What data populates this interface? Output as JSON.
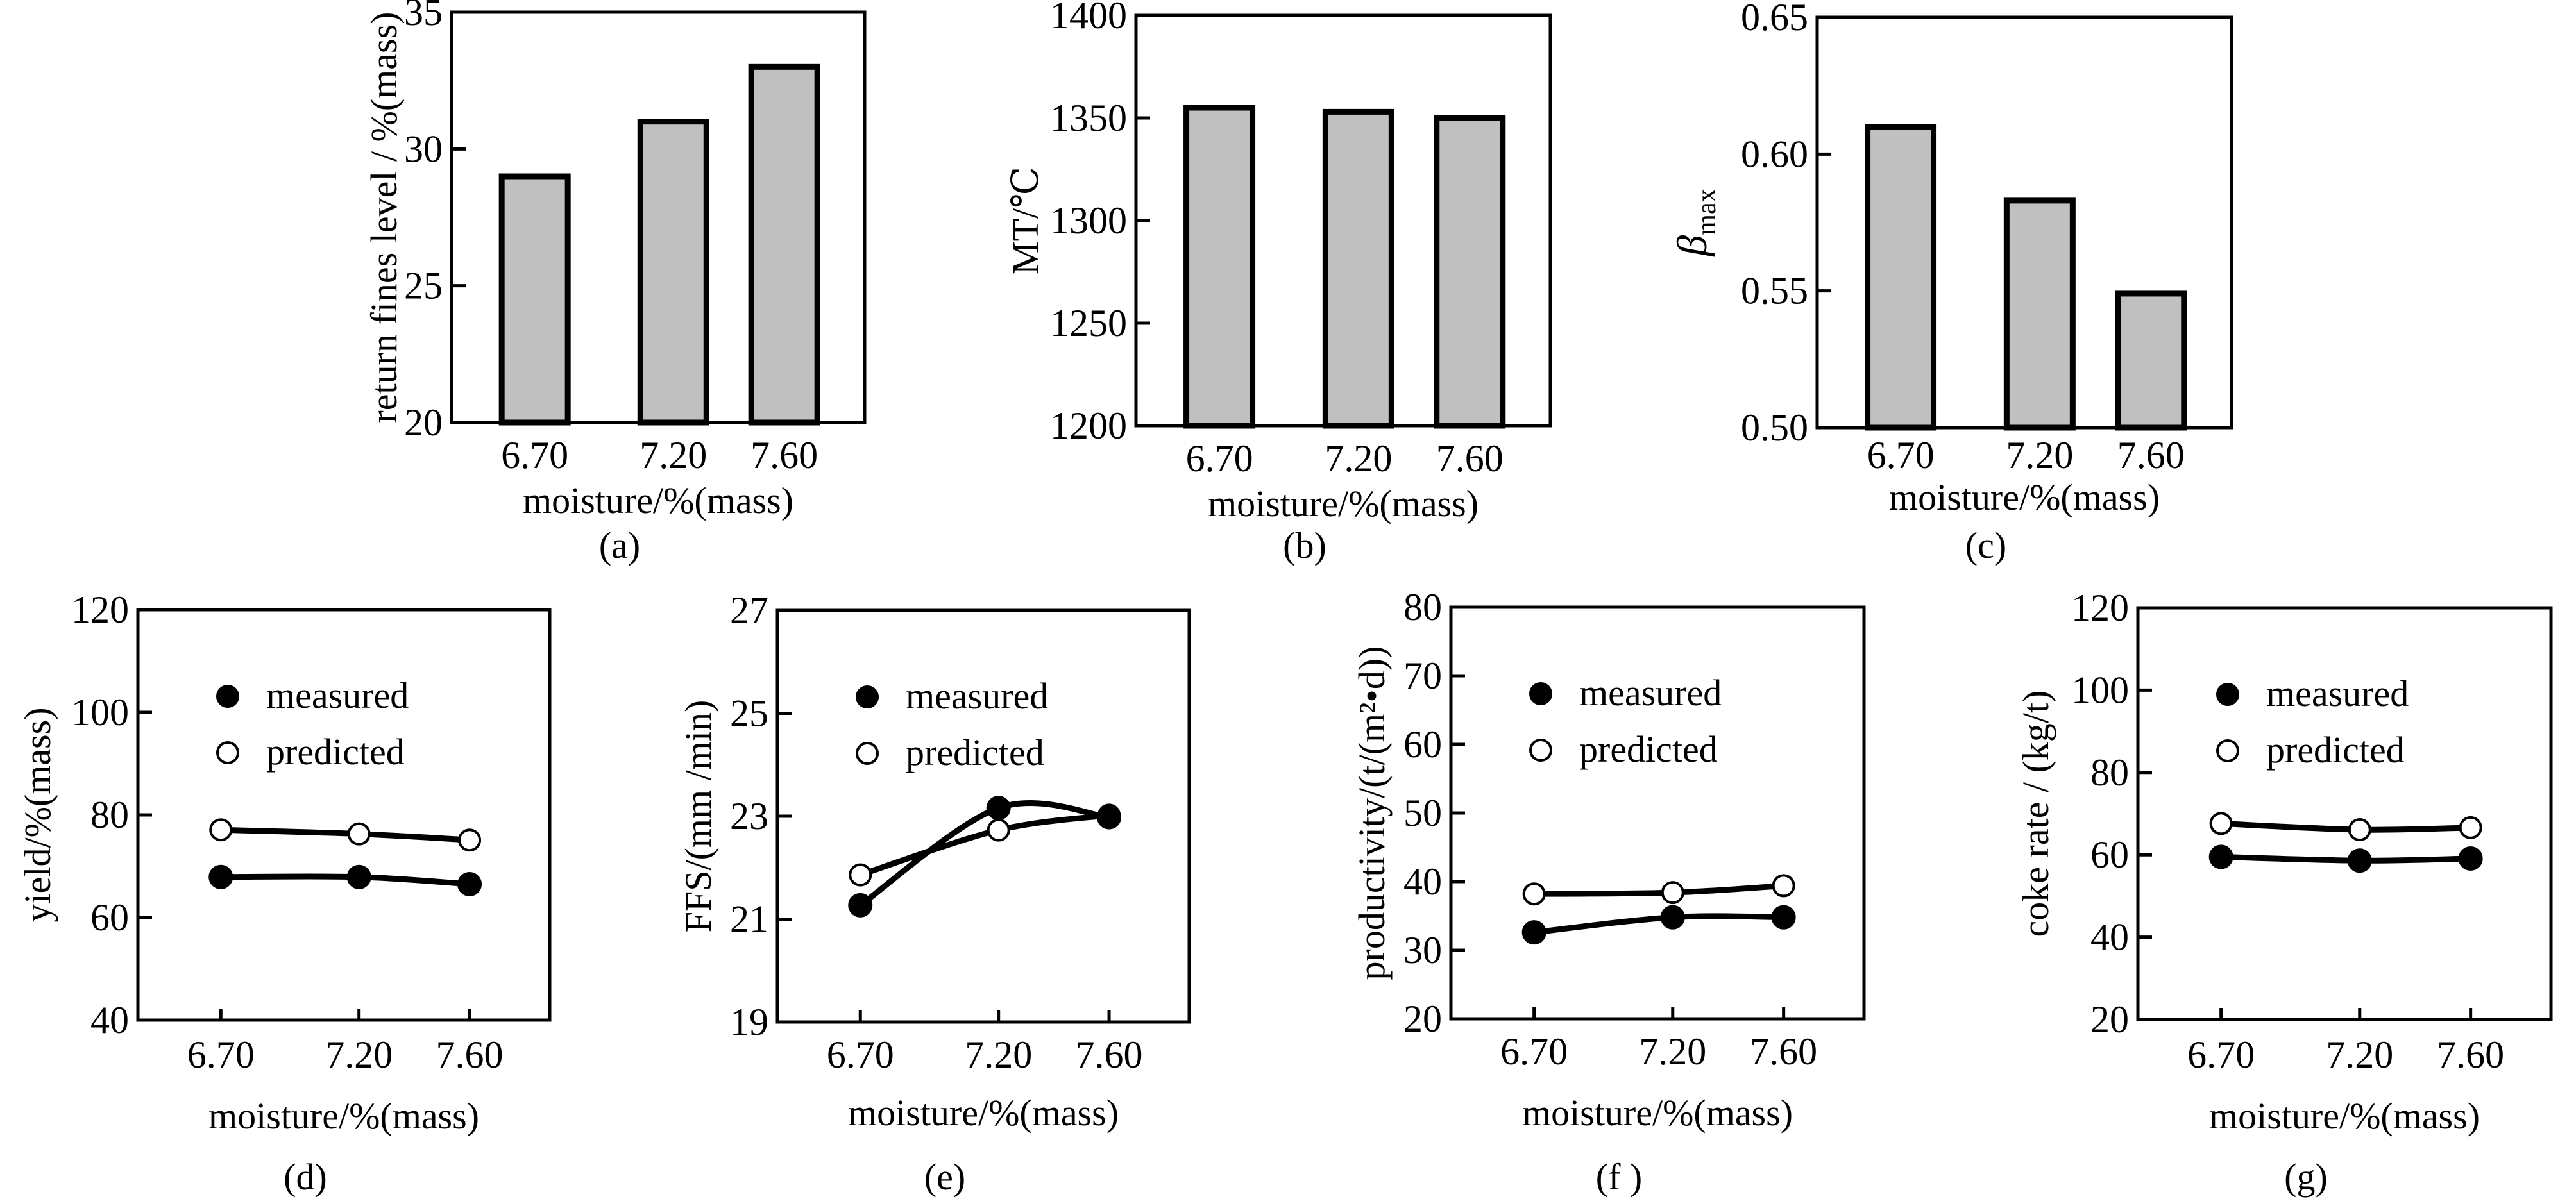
{
  "figure": {
    "description": "Effect of moisture on sintering indices: bar charts (a)-(c) and measured vs predicted line charts (d)-(g)"
  },
  "chart_data": [
    {
      "id": "a",
      "type": "bar",
      "panel_label": "(a)",
      "categories": [
        "6.70",
        "7.20",
        "7.60"
      ],
      "x": [
        6.7,
        7.2,
        7.6
      ],
      "values": [
        29.0,
        31.0,
        33.0
      ],
      "xlabel": "moisture/%(mass)",
      "ylabel": "return fines level / %(mass)",
      "ylim": [
        20,
        35
      ],
      "yticks": [
        20,
        25,
        30,
        35
      ],
      "ytick_labels": [
        "20",
        "25",
        "30",
        "35"
      ],
      "bar_color": "#c0c0c0",
      "grid": false
    },
    {
      "id": "b",
      "type": "bar",
      "panel_label": "(b)",
      "categories": [
        "6.70",
        "7.20",
        "7.60"
      ],
      "x": [
        6.7,
        7.2,
        7.6
      ],
      "values": [
        1355,
        1353,
        1350
      ],
      "xlabel": "moisture/%(mass)",
      "ylabel": "MT/℃",
      "ylim": [
        1200,
        1400
      ],
      "yticks": [
        1200,
        1250,
        1300,
        1350,
        1400
      ],
      "ytick_labels": [
        "1200",
        "1250",
        "1300",
        "1350",
        "1400"
      ],
      "bar_color": "#c0c0c0",
      "grid": false
    },
    {
      "id": "c",
      "type": "bar",
      "panel_label": "(c)",
      "categories": [
        "6.70",
        "7.20",
        "7.60"
      ],
      "x": [
        6.7,
        7.2,
        7.6
      ],
      "values": [
        0.61,
        0.583,
        0.549
      ],
      "xlabel": "moisture/%(mass)",
      "ylabel": "β",
      "ylabel_sub": "max",
      "ylim": [
        0.5,
        0.65
      ],
      "yticks": [
        0.5,
        0.55,
        0.6,
        0.65
      ],
      "ytick_labels": [
        "0.50",
        "0.55",
        "0.60",
        "0.65"
      ],
      "bar_color": "#c0c0c0",
      "grid": false
    },
    {
      "id": "d",
      "type": "line",
      "panel_label": "(d)",
      "categories": [
        "6.70",
        "7.20",
        "7.60"
      ],
      "x": [
        6.7,
        7.2,
        7.6
      ],
      "series": [
        {
          "name": "measured",
          "marker": "filled-circle",
          "values": [
            67.9,
            67.9,
            66.5
          ]
        },
        {
          "name": "predicted",
          "marker": "open-circle",
          "values": [
            77.1,
            76.3,
            75.1
          ]
        }
      ],
      "xlabel": "moisture/%(mass)",
      "ylabel": "yield/%(mass)",
      "ylim": [
        40,
        120
      ],
      "yticks": [
        40,
        60,
        80,
        100,
        120
      ],
      "ytick_labels": [
        "40",
        "60",
        "80",
        "100",
        "120"
      ],
      "legend": "top-left",
      "grid": false
    },
    {
      "id": "e",
      "type": "line",
      "panel_label": "(e)",
      "categories": [
        "6.70",
        "7.20",
        "7.60"
      ],
      "x": [
        6.7,
        7.2,
        7.6
      ],
      "series": [
        {
          "name": "measured",
          "marker": "filled-circle",
          "values": [
            21.27,
            23.16,
            22.98
          ]
        },
        {
          "name": "predicted",
          "marker": "open-circle",
          "values": [
            21.86,
            22.73,
            23.02
          ]
        }
      ],
      "xlabel": "moisture/%(mass)",
      "ylabel": "FFS/(mm /min)",
      "ylim": [
        19,
        27
      ],
      "yticks": [
        19,
        21,
        23,
        25,
        27
      ],
      "ytick_labels": [
        "19",
        "21",
        "23",
        "25",
        "27"
      ],
      "legend": "top-left",
      "grid": false
    },
    {
      "id": "f",
      "type": "line",
      "panel_label": "(f )",
      "categories": [
        "6.70",
        "7.20",
        "7.60"
      ],
      "x": [
        6.7,
        7.2,
        7.6
      ],
      "series": [
        {
          "name": "measured",
          "marker": "filled-circle",
          "values": [
            32.6,
            34.8,
            34.8
          ]
        },
        {
          "name": "predicted",
          "marker": "open-circle",
          "values": [
            38.2,
            38.4,
            39.4
          ]
        }
      ],
      "xlabel": "moisture/%(mass)",
      "ylabel": "productivity/(t/(m²•d))",
      "ylim": [
        20,
        80
      ],
      "yticks": [
        20,
        30,
        40,
        50,
        60,
        70,
        80
      ],
      "ytick_labels": [
        "20",
        "30",
        "40",
        "50",
        "60",
        "70",
        "80"
      ],
      "legend": "top-left",
      "grid": false
    },
    {
      "id": "g",
      "type": "line",
      "panel_label": "(g)",
      "categories": [
        "6.70",
        "7.20",
        "7.60"
      ],
      "x": [
        6.7,
        7.2,
        7.6
      ],
      "series": [
        {
          "name": "measured",
          "marker": "filled-circle",
          "values": [
            59.5,
            58.6,
            59.1
          ]
        },
        {
          "name": "predicted",
          "marker": "open-circle",
          "values": [
            67.6,
            66.1,
            66.6
          ]
        }
      ],
      "xlabel": "moisture/%(mass)",
      "ylabel": "coke rate / (kg/t)",
      "ylim": [
        20,
        120
      ],
      "yticks": [
        20,
        40,
        60,
        80,
        100,
        120
      ],
      "ytick_labels": [
        "20",
        "40",
        "60",
        "80",
        "100",
        "120"
      ],
      "legend": "top-left",
      "grid": false
    }
  ]
}
